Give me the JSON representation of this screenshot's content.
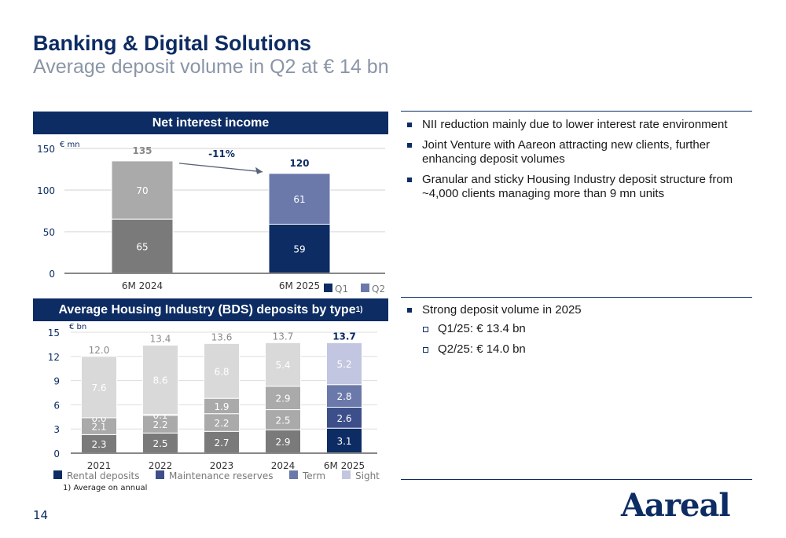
{
  "header": {
    "title": "Banking & Digital Solutions",
    "subtitle": "Average deposit volume in Q2 at € 14 bn"
  },
  "colors": {
    "navy": "#0c2c63",
    "q1": "#0c2c63",
    "q2": "#6b79aa",
    "nii_q1_2024": "#7a7a7a",
    "nii_q2_2024": "#aaaaaa",
    "rental": "#0c2c63",
    "maintenance": "#3d4f8a",
    "term": "#6b79aa",
    "sight": "#c2c6e0",
    "grey_dark": "#7a7a7a",
    "grey_mid": "#aaaaaa",
    "grey_light": "#d9d9d9"
  },
  "nii_panel": {
    "heading": "Net interest income",
    "unit": "€ mn",
    "change_label": "-11%"
  },
  "bds_panel": {
    "heading": "Average Housing Industry (BDS) deposits by type",
    "heading_sup": "1)",
    "unit": "€ bn"
  },
  "chart_data": [
    {
      "type": "bar",
      "stacked": true,
      "title": "Net interest income",
      "unit": "€ mn",
      "categories": [
        "6M 2024",
        "6M 2025"
      ],
      "series": [
        {
          "name": "Q1",
          "values": [
            65,
            59
          ]
        },
        {
          "name": "Q2",
          "values": [
            70,
            61
          ]
        }
      ],
      "totals": [
        135,
        120
      ],
      "ylim": [
        0,
        150
      ],
      "yticks": [
        0,
        50,
        100,
        150
      ],
      "annotation": "-11%",
      "legend": "bottom-right",
      "grid": true
    },
    {
      "type": "bar",
      "stacked": true,
      "title": "Average Housing Industry (BDS) deposits by type",
      "unit": "€ bn",
      "categories": [
        "2021",
        "2022",
        "2023",
        "2024",
        "6M 2025"
      ],
      "series": [
        {
          "name": "Rental deposits",
          "values": [
            2.3,
            2.5,
            2.7,
            2.9,
            3.1
          ]
        },
        {
          "name": "Maintenance reserves",
          "values": [
            2.1,
            2.2,
            2.2,
            2.5,
            2.6
          ]
        },
        {
          "name": "Term",
          "values": [
            0.0,
            0.1,
            1.9,
            2.9,
            2.8
          ]
        },
        {
          "name": "Sight",
          "values": [
            7.6,
            8.6,
            6.8,
            5.4,
            5.2
          ]
        }
      ],
      "totals": [
        12.0,
        13.4,
        13.6,
        13.7,
        13.7
      ],
      "total_labels": [
        "12.0",
        "13.4",
        "13.6",
        "13.7",
        "13.7"
      ],
      "value_labels": [
        [
          "2.3",
          "2.5",
          "2.7",
          "2.9",
          "3.1"
        ],
        [
          "2.1",
          "2.2",
          "2.2",
          "2.5",
          "2.6"
        ],
        [
          "0.0",
          "0.1",
          "1.9",
          "2.9",
          "2.8"
        ],
        [
          "7.6",
          "8.6",
          "6.8",
          "5.4",
          "5.2"
        ]
      ],
      "ylim": [
        0,
        15
      ],
      "yticks": [
        0,
        3,
        6,
        9,
        12,
        15
      ],
      "legend": "bottom",
      "grid": true
    }
  ],
  "bullets_top": [
    "NII reduction mainly due to lower interest rate environment",
    "Joint Venture with Aareon attracting new clients, further enhancing deposit volumes",
    "Granular and sticky Housing Industry deposit structure from ~4,000 clients managing more than 9 mn units"
  ],
  "bullets_bottom": {
    "main": "Strong deposit volume in 2025",
    "sub": [
      "Q1/25: € 13.4 bn",
      "Q2/25: € 14.0 bn"
    ]
  },
  "footnote": "1)   Average on annual",
  "page_number": "14",
  "logo_text": "Aareal"
}
